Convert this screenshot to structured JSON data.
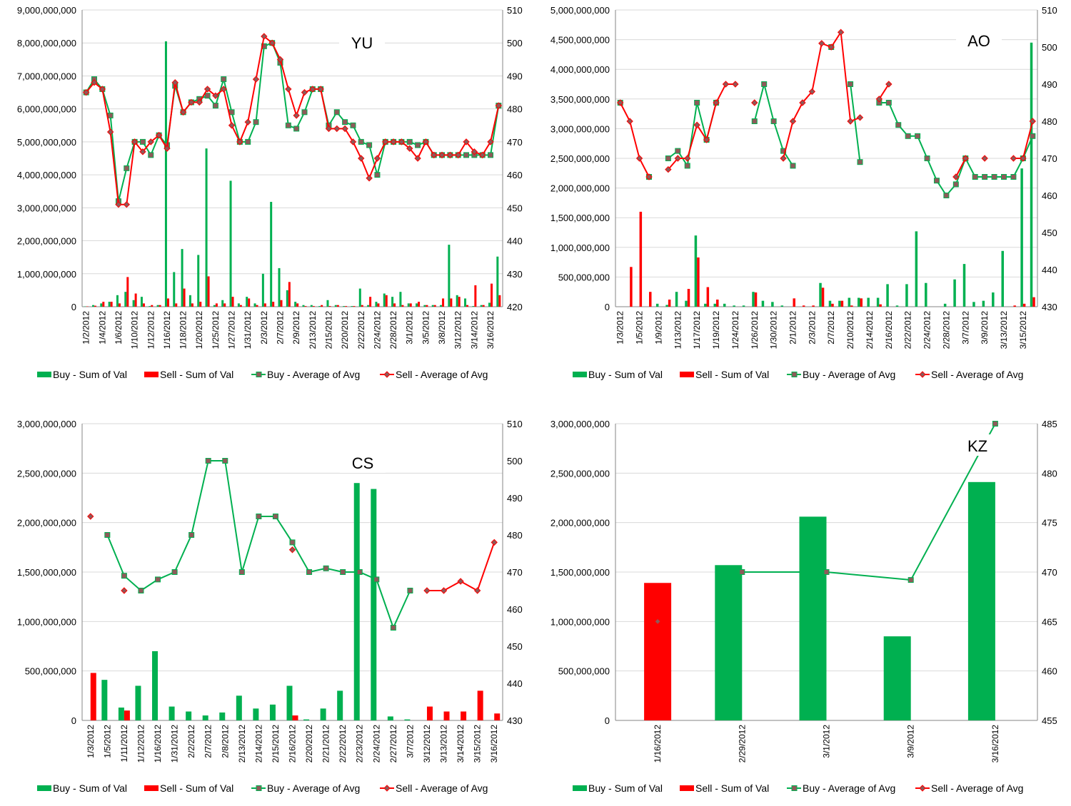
{
  "colors": {
    "buy": "#00b050",
    "sell": "#ff0000",
    "marker_fill": "#8e5a5a",
    "grid": "#d9d9d9",
    "axis": "#868686"
  },
  "legend": [
    "Buy - Sum of Val",
    "Sell - Sum of Val",
    "Buy - Average of Avg",
    "Sell - Average of Avg"
  ],
  "chart_data": [
    {
      "id": "YU",
      "title": "YU",
      "type": "bar+line",
      "y1_ticks": [
        "9,000,000,000",
        "8,000,000,000",
        "7,000,000,000",
        "6,000,000,000",
        "5,000,000,000",
        "4,000,000,000",
        "3,000,000,000",
        "2,000,000,000",
        "1,000,000,000",
        "0"
      ],
      "y2_ticks": [
        "510",
        "500",
        "490",
        "480",
        "470",
        "460",
        "450",
        "440",
        "430",
        "420"
      ],
      "ylim": [
        0,
        9000000000
      ],
      "y2lim": [
        420,
        510
      ],
      "x_tick_labels": [
        "1/2/2012",
        "1/4/2012",
        "1/6/2012",
        "1/10/2012",
        "1/12/2012",
        "1/16/2012",
        "1/18/2012",
        "1/20/2012",
        "1/25/2012",
        "1/27/2012",
        "1/31/2012",
        "2/3/2012",
        "2/7/2012",
        "2/9/2012",
        "2/13/2012",
        "2/15/2012",
        "2/20/2012",
        "2/22/2012",
        "2/24/2012",
        "2/28/2012",
        "3/1/2012",
        "3/5/2012",
        "3/8/2012",
        "3/12/2012",
        "3/14/2012",
        "3/16/2012"
      ],
      "n_points": 52,
      "buy_val": [
        0.01,
        0.05,
        0.1,
        0.15,
        0.35,
        0.45,
        0.2,
        0.3,
        0.02,
        0.05,
        8.05,
        1.05,
        1.75,
        0.35,
        1.57,
        4.8,
        0.05,
        0.2,
        3.82,
        0.1,
        0.3,
        0.1,
        1.0,
        3.18,
        1.17,
        0.5,
        0.15,
        0.05,
        0.05,
        0.02,
        0.2,
        0.05,
        0.02,
        0.02,
        0.55,
        0.05,
        0.15,
        0.4,
        0.3,
        0.45,
        0.1,
        0.1,
        0.05,
        0.05,
        0.05,
        1.88,
        0.35,
        0.25,
        0.02,
        0.05,
        0.12,
        1.52
      ],
      "sell_val": [
        0.01,
        0.03,
        0.15,
        0.15,
        0.1,
        0.9,
        0.4,
        0.1,
        0.05,
        0.05,
        0.25,
        0.1,
        0.55,
        0.1,
        0.15,
        0.92,
        0.1,
        0.1,
        0.3,
        0.05,
        0.25,
        0.05,
        0.1,
        0.15,
        0.2,
        0.75,
        0.1,
        0.02,
        0.02,
        0.05,
        0.02,
        0.05,
        0.02,
        0.02,
        0.05,
        0.3,
        0.1,
        0.35,
        0.1,
        0.05,
        0.1,
        0.15,
        0.05,
        0.05,
        0.25,
        0.25,
        0.3,
        0.05,
        0.65,
        0.05,
        0.7,
        0.35
      ],
      "buy_avg": [
        485,
        489,
        486,
        478,
        452,
        462,
        470,
        470,
        466,
        472,
        469,
        487,
        479,
        482,
        483,
        484,
        481,
        489,
        479,
        470,
        470,
        476,
        499,
        500,
        494,
        475,
        474,
        479,
        486,
        486,
        475,
        479,
        476,
        475,
        470,
        469,
        460,
        470,
        470,
        470,
        470,
        469,
        470,
        466,
        466,
        466,
        466,
        466,
        466,
        466,
        466,
        481
      ],
      "sell_avg": [
        485,
        488,
        486,
        473,
        451,
        451,
        470,
        467,
        470,
        472,
        468,
        488,
        479,
        482,
        482,
        486,
        484,
        486,
        475,
        470,
        476,
        489,
        502,
        500,
        495,
        486,
        478,
        485,
        486,
        486,
        474,
        474,
        474,
        470,
        465,
        459,
        465,
        470,
        470,
        470,
        468,
        465,
        470,
        466,
        466,
        466,
        466,
        470,
        467,
        466,
        470,
        481
      ]
    },
    {
      "id": "AO",
      "title": "AO",
      "type": "bar+line",
      "y1_ticks": [
        "5,000,000,000",
        "4,500,000,000",
        "4,000,000,000",
        "3,500,000,000",
        "3,000,000,000",
        "2,500,000,000",
        "2,000,000,000",
        "1,500,000,000",
        "1,000,000,000",
        "500,000,000",
        "0"
      ],
      "y2_ticks": [
        "510",
        "500",
        "490",
        "480",
        "470",
        "460",
        "450",
        "440",
        "430"
      ],
      "ylim": [
        0,
        5000000000
      ],
      "y2lim": [
        430,
        510
      ],
      "x_tick_labels": [
        "1/3/2012",
        "1/5/2012",
        "1/9/2012",
        "1/13/2012",
        "1/17/2012",
        "1/19/2012",
        "1/24/2012",
        "1/26/2012",
        "1/30/2012",
        "2/1/2012",
        "2/3/2012",
        "2/7/2012",
        "2/10/2012",
        "2/14/2012",
        "2/16/2012",
        "2/22/2012",
        "2/24/2012",
        "2/28/2012",
        "3/7/2012",
        "3/9/2012",
        "3/13/2012",
        "3/15/2012"
      ],
      "n_points": 44,
      "buy_val": [
        0,
        0,
        0,
        0,
        0.05,
        0.03,
        0.25,
        0.1,
        1.2,
        0.05,
        0.05,
        0.05,
        0.02,
        0.02,
        0.25,
        0.1,
        0.08,
        0.02,
        0,
        0,
        0,
        0.4,
        0.1,
        0.1,
        0.15,
        0.15,
        0.15,
        0.15,
        0.38,
        0.02,
        0.38,
        1.27,
        0.4,
        0,
        0.05,
        0.46,
        0.72,
        0.08,
        0.1,
        0.24,
        0.94,
        0,
        2.33,
        4.45
      ],
      "sell_val": [
        0,
        0.67,
        1.6,
        0.25,
        0,
        0.12,
        0,
        0.3,
        0.83,
        0.33,
        0.12,
        0,
        0,
        0,
        0.24,
        0,
        0,
        0,
        0.14,
        0.02,
        0.02,
        0.32,
        0.05,
        0.1,
        0.02,
        0.14,
        0,
        0.04,
        0,
        0,
        0,
        0,
        0,
        0,
        0,
        0,
        0,
        0,
        0,
        0,
        0,
        0.02,
        0.05,
        0.16
      ],
      "buy_avg": [
        485,
        null,
        null,
        465,
        null,
        470,
        472,
        468,
        485,
        475,
        485,
        null,
        null,
        null,
        480,
        490,
        480,
        472,
        468,
        null,
        null,
        null,
        500,
        null,
        490,
        469,
        null,
        485,
        485,
        479,
        476,
        476,
        470,
        464,
        460,
        463,
        470,
        465,
        465,
        465,
        465,
        465,
        470,
        476
      ],
      "sell_avg": [
        485,
        480,
        470,
        465,
        null,
        467,
        470,
        470,
        479,
        475,
        485,
        490,
        490,
        null,
        485,
        null,
        null,
        470,
        480,
        485,
        488,
        501,
        500,
        504,
        480,
        481,
        null,
        486,
        490,
        null,
        null,
        null,
        null,
        null,
        null,
        465,
        470,
        null,
        470,
        null,
        null,
        470,
        470,
        480
      ]
    },
    {
      "id": "CS",
      "title": "CS",
      "type": "bar+line",
      "y1_ticks": [
        "3,000,000,000",
        "2,500,000,000",
        "2,000,000,000",
        "1,500,000,000",
        "1,000,000,000",
        "500,000,000",
        "0"
      ],
      "y2_ticks": [
        "510",
        "500",
        "490",
        "480",
        "470",
        "460",
        "450",
        "440",
        "430"
      ],
      "ylim": [
        0,
        3000000000
      ],
      "y2lim": [
        430,
        510
      ],
      "x_tick_labels": [
        "1/3/2012",
        "1/5/2012",
        "1/11/2012",
        "1/12/2012",
        "1/16/2012",
        "1/31/2012",
        "2/2/2012",
        "2/7/2012",
        "2/8/2012",
        "2/13/2012",
        "2/14/2012",
        "2/15/2012",
        "2/16/2012",
        "2/20/2012",
        "2/21/2012",
        "2/22/2012",
        "2/23/2012",
        "2/24/2012",
        "2/27/2012",
        "3/7/2012",
        "3/12/2012",
        "3/13/2012",
        "3/14/2012",
        "3/15/2012",
        "3/16/2012"
      ],
      "n_points": 25,
      "buy_val": [
        0,
        0.41,
        0.13,
        0.35,
        0.7,
        0.14,
        0.09,
        0.05,
        0.08,
        0.25,
        0.12,
        0.16,
        0.35,
        0.01,
        0.12,
        0.3,
        2.4,
        2.34,
        0.04,
        0.01,
        0,
        0,
        0,
        0,
        0
      ],
      "sell_val": [
        0.48,
        0,
        0.1,
        0,
        0,
        0,
        0,
        0,
        0,
        0,
        0,
        0,
        0.05,
        0,
        0,
        0,
        0,
        0,
        0,
        0,
        0.14,
        0.09,
        0.09,
        0.3,
        0.07
      ],
      "buy_avg": [
        null,
        480,
        469,
        465,
        468,
        470,
        480,
        500,
        500,
        470,
        485,
        485,
        478,
        470,
        471,
        470,
        470,
        468,
        455,
        465,
        null,
        null,
        null,
        null,
        null
      ],
      "sell_avg": [
        485,
        null,
        465,
        null,
        null,
        null,
        null,
        null,
        null,
        null,
        null,
        null,
        476,
        null,
        null,
        null,
        null,
        null,
        null,
        null,
        465,
        465,
        467.5,
        465,
        478
      ]
    },
    {
      "id": "KZ",
      "title": "KZ",
      "type": "bar+line",
      "y1_ticks": [
        "3,000,000,000",
        "2,500,000,000",
        "2,000,000,000",
        "1,500,000,000",
        "1,000,000,000",
        "500,000,000",
        "0"
      ],
      "y2_ticks": [
        "485",
        "480",
        "475",
        "470",
        "465",
        "460",
        "455"
      ],
      "ylim": [
        0,
        3000000000
      ],
      "y2lim": [
        455,
        485
      ],
      "x_tick_labels": [
        "1/16/2012",
        "2/29/2012",
        "3/1/2012",
        "3/9/2012",
        "3/16/2012"
      ],
      "n_points": 5,
      "buy_val": [
        0,
        1.57,
        2.06,
        0.85,
        2.41
      ],
      "sell_val": [
        1.39,
        0,
        0,
        0,
        0
      ],
      "buy_avg": [
        null,
        470,
        470,
        469.2,
        485
      ],
      "sell_avg": [
        465,
        null,
        null,
        null,
        null
      ]
    }
  ]
}
